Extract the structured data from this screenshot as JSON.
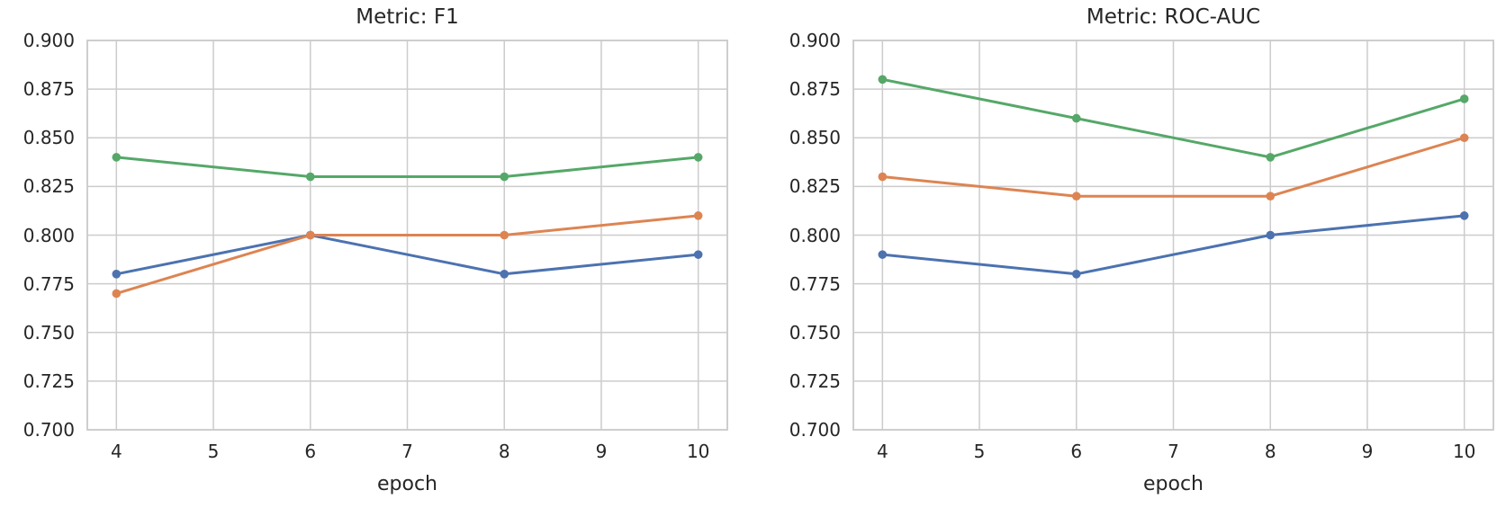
{
  "figure": {
    "background_color": "#ffffff",
    "grid_color": "#cccccc",
    "text_color": "#262626"
  },
  "chart_data": [
    {
      "type": "line",
      "title": "Metric: F1",
      "xlabel": "epoch",
      "ylabel": "",
      "x": [
        4,
        6,
        8,
        10
      ],
      "xticks": [
        4,
        5,
        6,
        7,
        8,
        9,
        10
      ],
      "xlim": [
        3.7,
        10.3
      ],
      "ylim": [
        0.7,
        0.9
      ],
      "yticks": [
        "0.700",
        "0.725",
        "0.750",
        "0.775",
        "0.800",
        "0.825",
        "0.850",
        "0.875",
        "0.900"
      ],
      "grid": true,
      "legend": false,
      "series": [
        {
          "color": "#4c72b0",
          "values": [
            0.78,
            0.8,
            0.78,
            0.79
          ]
        },
        {
          "color": "#dd8452",
          "values": [
            0.77,
            0.8,
            0.8,
            0.81
          ]
        },
        {
          "color": "#55a868",
          "values": [
            0.84,
            0.83,
            0.83,
            0.84
          ]
        }
      ]
    },
    {
      "type": "line",
      "title": "Metric: ROC-AUC",
      "xlabel": "epoch",
      "ylabel": "",
      "x": [
        4,
        6,
        8,
        10
      ],
      "xticks": [
        4,
        5,
        6,
        7,
        8,
        9,
        10
      ],
      "xlim": [
        3.7,
        10.3
      ],
      "ylim": [
        0.7,
        0.9
      ],
      "yticks": [
        "0.700",
        "0.725",
        "0.750",
        "0.775",
        "0.800",
        "0.825",
        "0.850",
        "0.875",
        "0.900"
      ],
      "grid": true,
      "legend": false,
      "series": [
        {
          "color": "#4c72b0",
          "values": [
            0.79,
            0.78,
            0.8,
            0.81
          ]
        },
        {
          "color": "#dd8452",
          "values": [
            0.83,
            0.82,
            0.82,
            0.85
          ]
        },
        {
          "color": "#55a868",
          "values": [
            0.88,
            0.86,
            0.84,
            0.87
          ]
        }
      ]
    }
  ]
}
